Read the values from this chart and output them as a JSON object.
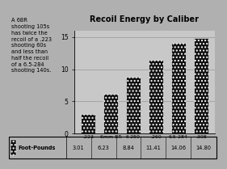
{
  "title": "Recoil Energy by Caliber",
  "categories": [
    ".223",
    "6mm BR",
    "6-250",
    ".260",
    "6.5-284",
    ".308"
  ],
  "values": [
    3.01,
    6.23,
    8.84,
    11.41,
    14.06,
    14.8
  ],
  "value_labels": [
    "3.01",
    "6.23",
    "8.84",
    "11.41",
    "14.06",
    "14.80"
  ],
  "ylim": [
    0,
    16
  ],
  "yticks": [
    0,
    5,
    10,
    15
  ],
  "bar_color": "#111111",
  "bar_hatch": "....",
  "legend_label": "Foot-Pounds",
  "annotation": "A 6BR\nshooting 105s\nhas twice the\nrecoil of a .223\nshooting 60s\nand less than\nhalf the recoil\nof a 6.5-284\nshooting 140s.",
  "bg_color": "#b0b0b0",
  "plot_bg": "#c8c8c8",
  "table_bg": "#d0d0d0",
  "title_bg": "#d8d8d8"
}
